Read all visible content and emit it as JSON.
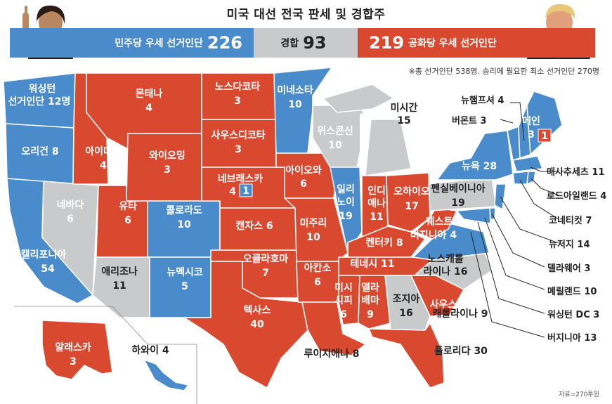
{
  "title": "미국 대선 전국 판세 및 경합주",
  "summary": {
    "dem_label": "민주당 우세 선거인단",
    "dem_total": "226",
    "tossup_label": "경합",
    "tossup_total": "93",
    "gop_total": "219",
    "gop_label": "공화당 우세 선거인단"
  },
  "note": "※총 선거인단 538명. 승리에 필요한 최소 선거인단 270명",
  "source": "자료=270투윈",
  "colors": {
    "dem": "#4a8ccb",
    "gop": "#d9492f",
    "tossup": "#c9cacc",
    "lake": "#ffffff"
  },
  "map_labels": {
    "wa": "워싱턴",
    "wa2": "선거인단 12명",
    "mt": "몬태나",
    "mt_v": "4",
    "nd": "노스다코타",
    "nd_v": "3",
    "mn": "미네소타",
    "mn_v": "10",
    "mi": "미시간",
    "mi_v": "15",
    "nh": "뉴햄프셔 4",
    "vt": "버몬트 3",
    "me": "메인",
    "me_v": "3",
    "me_split": "1",
    "or": "오리건 8",
    "id": "아이다호",
    "id_v": "4",
    "wy": "와이오밍",
    "wy_v": "3",
    "sd": "사우스디코타",
    "sd_v": "3",
    "wi": "위스콘신",
    "wi_v": "10",
    "ny": "뉴욕 28",
    "ma": "매사추세츠 11",
    "ri": "로드아일랜드 4",
    "ct": "코네티컷 7",
    "nj": "뉴저지 14",
    "de": "델라웨어 3",
    "md": "메릴랜드 10",
    "dc": "워싱턴 DC 3",
    "va": "버지니아 13",
    "ne": "네브래스카",
    "ne_v": "4",
    "ne_split": "1",
    "ia": "아이오와",
    "ia_v": "6",
    "il": "일리",
    "il2": "노이",
    "il_v": "19",
    "in": "인디",
    "in2": "애나",
    "in_v": "11",
    "oh": "오하이오",
    "oh_v": "17",
    "pa": "펜실베이니아",
    "pa_v": "19",
    "nv": "네바다",
    "nv_v": "6",
    "ut": "유타",
    "ut_v": "6",
    "co": "콜로라도",
    "co_v": "10",
    "ks": "캔자스 6",
    "mo": "미주리",
    "mo_v": "10",
    "wv": "웨스트",
    "wv2": "버지니아 4",
    "ky": "켄터키 8",
    "ca": "캘리포니아",
    "ca_v": "54",
    "az": "애리조나",
    "az_v": "11",
    "nm": "뉴멕시코",
    "nm_v": "5",
    "ok": "오클라호마",
    "ok_v": "7",
    "ar": "아칸소",
    "ar_v": "6",
    "tn": "테네시 11",
    "nc": "노스캐롤",
    "nc2": "라이나 16",
    "ms": "미시",
    "ms2": "시피",
    "ms_v": "6",
    "al": "앨라",
    "al2": "배마",
    "al_v": "9",
    "ga": "조지아",
    "ga_v": "16",
    "sc": "사우스",
    "sc2": "캐롤라이나 9",
    "tx": "텍사스",
    "tx_v": "40",
    "la": "루이지애나 8",
    "fl": "플로리다 30",
    "ak": "알래스카",
    "ak_v": "3",
    "hi": "하와이 4"
  }
}
